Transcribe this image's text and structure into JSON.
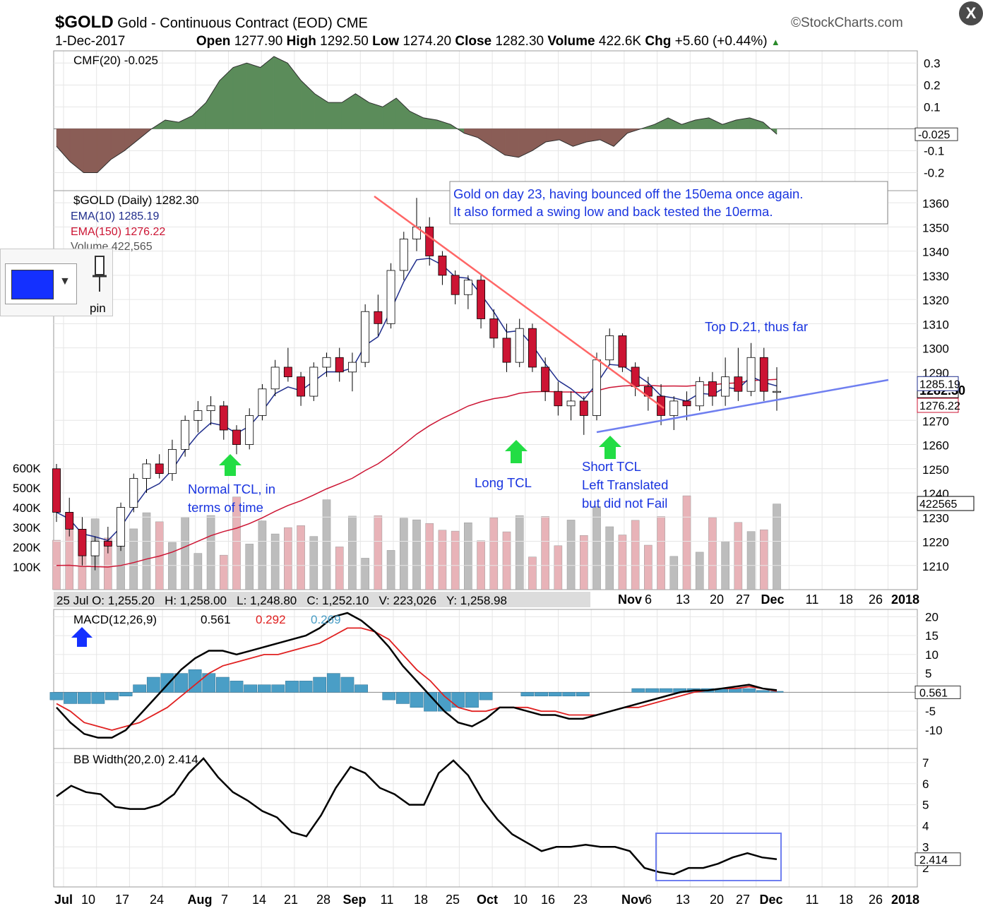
{
  "header": {
    "symbol": "$GOLD",
    "name": "Gold - Continuous Contract (EOD)",
    "exchange": "CME",
    "source": "©StockCharts.com",
    "date": "1-Dec-2017",
    "open_label": "Open",
    "open": "1277.90",
    "high_label": "High",
    "high": "1292.50",
    "low_label": "Low",
    "low": "1274.20",
    "close_label": "Close",
    "close": "1282.30",
    "volume_label": "Volume",
    "volume": "422.6K",
    "chg_label": "Chg",
    "chg": "+5.60 (+0.44%)"
  },
  "toolbar": {
    "close_label": "X",
    "pin_label": "pin",
    "swatch_color": "#1430ff"
  },
  "chart_data": [
    {
      "type": "area",
      "panel": "cmf",
      "legend": "CMF(20) -0.025",
      "ylim": [
        -0.25,
        0.33
      ],
      "yticks": [
        "0.3",
        "0.2",
        "0.1",
        "-0.1",
        "-0.2"
      ],
      "current_value": "-0.025",
      "values": [
        -0.08,
        -0.15,
        -0.2,
        -0.2,
        -0.14,
        -0.1,
        -0.05,
        0.0,
        0.04,
        0.03,
        0.06,
        0.12,
        0.22,
        0.28,
        0.3,
        0.28,
        0.33,
        0.3,
        0.22,
        0.16,
        0.12,
        0.12,
        0.16,
        0.12,
        0.1,
        0.14,
        0.08,
        0.05,
        0.04,
        0.02,
        -0.02,
        -0.04,
        -0.08,
        -0.12,
        -0.13,
        -0.1,
        -0.06,
        -0.05,
        -0.08,
        -0.06,
        -0.05,
        -0.08,
        -0.02,
        0.0,
        0.02,
        0.05,
        0.02,
        0.04,
        0.05,
        0.02,
        0.04,
        0.05,
        0.03,
        -0.025
      ],
      "colors": {
        "positive": "#5b8c5a",
        "negative": "#8a5d56"
      }
    },
    {
      "type": "candlestick",
      "panel": "price",
      "legend": [
        "$GOLD (Daily) 1282.30",
        "EMA(10) 1285.19",
        "EMA(150) 1276.22",
        "Volume 422,565"
      ],
      "ylim": [
        1200,
        1365
      ],
      "yticks": [
        "1360",
        "1350",
        "1340",
        "1330",
        "1320",
        "1310",
        "1300",
        "1290",
        "1270",
        "1260",
        "1250",
        "1240",
        "1230",
        "1220",
        "1210"
      ],
      "price_labels": [
        "1282.30",
        "1276.22",
        "1285.19"
      ],
      "ohlc": [
        [
          1250,
          1252,
          1228,
          1232
        ],
        [
          1232,
          1238,
          1222,
          1225
        ],
        [
          1225,
          1230,
          1210,
          1214
        ],
        [
          1214,
          1222,
          1208,
          1220
        ],
        [
          1220,
          1226,
          1215,
          1218
        ],
        [
          1218,
          1236,
          1216,
          1234
        ],
        [
          1234,
          1248,
          1232,
          1246
        ],
        [
          1246,
          1254,
          1240,
          1252
        ],
        [
          1252,
          1256,
          1246,
          1248
        ],
        [
          1248,
          1262,
          1245,
          1258
        ],
        [
          1258,
          1272,
          1255,
          1270
        ],
        [
          1270,
          1278,
          1265,
          1274
        ],
        [
          1274,
          1280,
          1268,
          1276
        ],
        [
          1276,
          1278,
          1262,
          1266
        ],
        [
          1266,
          1268,
          1256,
          1260
        ],
        [
          1260,
          1275,
          1258,
          1272
        ],
        [
          1272,
          1285,
          1270,
          1283
        ],
        [
          1283,
          1295,
          1280,
          1292
        ],
        [
          1292,
          1300,
          1286,
          1288
        ],
        [
          1288,
          1290,
          1276,
          1280
        ],
        [
          1280,
          1294,
          1278,
          1292
        ],
        [
          1292,
          1298,
          1288,
          1296
        ],
        [
          1296,
          1300,
          1286,
          1290
        ],
        [
          1290,
          1298,
          1282,
          1294
        ],
        [
          1294,
          1318,
          1292,
          1315
        ],
        [
          1315,
          1322,
          1305,
          1310
        ],
        [
          1310,
          1335,
          1308,
          1332
        ],
        [
          1332,
          1348,
          1328,
          1345
        ],
        [
          1345,
          1362,
          1340,
          1350
        ],
        [
          1350,
          1354,
          1334,
          1338
        ],
        [
          1338,
          1340,
          1326,
          1330
        ],
        [
          1330,
          1332,
          1318,
          1322
        ],
        [
          1322,
          1330,
          1316,
          1328
        ],
        [
          1328,
          1330,
          1308,
          1312
        ],
        [
          1312,
          1316,
          1300,
          1304
        ],
        [
          1304,
          1310,
          1290,
          1294
        ],
        [
          1294,
          1312,
          1292,
          1308
        ],
        [
          1308,
          1310,
          1290,
          1292
        ],
        [
          1292,
          1296,
          1278,
          1282
        ],
        [
          1282,
          1286,
          1272,
          1276
        ],
        [
          1276,
          1282,
          1270,
          1278
        ],
        [
          1278,
          1280,
          1264,
          1272
        ],
        [
          1272,
          1298,
          1270,
          1295
        ],
        [
          1295,
          1308,
          1293,
          1305
        ],
        [
          1305,
          1306,
          1290,
          1292
        ],
        [
          1292,
          1294,
          1280,
          1284
        ],
        [
          1284,
          1288,
          1274,
          1280
        ],
        [
          1280,
          1285,
          1268,
          1272
        ],
        [
          1272,
          1280,
          1266,
          1278
        ],
        [
          1278,
          1282,
          1270,
          1276
        ],
        [
          1276,
          1288,
          1274,
          1286
        ],
        [
          1286,
          1290,
          1276,
          1280
        ],
        [
          1280,
          1296,
          1276,
          1288
        ],
        [
          1288,
          1300,
          1278,
          1282
        ],
        [
          1282,
          1302,
          1280,
          1296
        ],
        [
          1296,
          1300,
          1278,
          1282
        ],
        [
          1282,
          1292,
          1274,
          1282
        ]
      ],
      "volume_ticks": [
        "600K",
        "500K",
        "400K",
        "300K",
        "200K",
        "100K"
      ],
      "volume_label": "422565"
    },
    {
      "type": "line",
      "panel": "macd",
      "legend": {
        "prefix": "MACD(12,26,9)",
        "macd": "0.561",
        "signal": "0.292",
        "hist": "0.269"
      },
      "ylim": [
        -13,
        21
      ],
      "yticks": [
        "20",
        "15",
        "10",
        "5",
        "-5",
        "-10"
      ],
      "current_value": "0.561",
      "macd": [
        -4,
        -8,
        -11,
        -12,
        -12,
        -10,
        -6,
        -2,
        2,
        6,
        9,
        11,
        11,
        10,
        11,
        12,
        13,
        14,
        15,
        17,
        20,
        21,
        19,
        16,
        12,
        7,
        3,
        -1,
        -5,
        -8,
        -9,
        -7,
        -4,
        -4,
        -5,
        -6,
        -6,
        -7,
        -7,
        -6,
        -5,
        -4,
        -3,
        -2,
        -1,
        0,
        0.5,
        0.5,
        1,
        1.5,
        2,
        1,
        0.561
      ],
      "signal": [
        -3,
        -5,
        -8,
        -9,
        -10,
        -9,
        -8,
        -6,
        -4,
        -1,
        2,
        5,
        7,
        8,
        9,
        10,
        10,
        11,
        12,
        13,
        15,
        17,
        17,
        16,
        14,
        10,
        6,
        3,
        -1,
        -4,
        -5,
        -5,
        -4,
        -4,
        -4,
        -5,
        -5,
        -6,
        -6,
        -6,
        -5,
        -4,
        -4,
        -3,
        -2,
        -1,
        0,
        0.5,
        1,
        1,
        1.5,
        1,
        0.292
      ],
      "histogram": [
        -2,
        -3,
        -3,
        -3,
        -2,
        -1,
        2,
        4,
        5,
        5,
        6,
        5,
        4,
        3,
        2,
        2,
        2,
        3,
        3,
        4,
        5,
        4,
        2,
        0,
        -2,
        -3,
        -4,
        -5,
        -5,
        -4,
        -4,
        -2,
        0,
        0,
        -1,
        -1,
        -1,
        -1,
        -1,
        0,
        0,
        0,
        1,
        1,
        1,
        1,
        1,
        1,
        1,
        1,
        1,
        0.5,
        0.269
      ],
      "colors": {
        "macd": "#000000",
        "signal": "#e02020",
        "hist": "#4a9ec6"
      }
    },
    {
      "type": "line",
      "panel": "bbwidth",
      "legend": "BB Width(20,2.0) 2.414",
      "ylim": [
        1.3,
        7.4
      ],
      "yticks": [
        "7",
        "6",
        "5",
        "4",
        "3",
        "2"
      ],
      "current_value": "2.414",
      "values": [
        5.4,
        5.9,
        5.6,
        5.5,
        4.9,
        4.8,
        4.8,
        5.0,
        5.5,
        6.5,
        7.2,
        6.3,
        5.6,
        5.2,
        4.7,
        4.4,
        3.7,
        3.5,
        4.5,
        5.8,
        6.8,
        6.5,
        5.8,
        5.5,
        5.0,
        5.0,
        6.5,
        7.1,
        6.4,
        5.2,
        4.3,
        3.6,
        3.2,
        2.8,
        3.0,
        3.0,
        3.1,
        3.0,
        3.0,
        2.8,
        2.0,
        1.8,
        1.7,
        2.0,
        2.0,
        2.2,
        2.5,
        2.7,
        2.5,
        2.414
      ],
      "color": "#000000"
    }
  ],
  "x_axis": {
    "labels_bottom": [
      "Jul",
      "10",
      "17",
      "24",
      "Aug",
      "7",
      "14",
      "21",
      "28",
      "Sep",
      "11",
      "18",
      "25",
      "Oct",
      "10",
      "16",
      "23",
      "Nov",
      "6",
      "13",
      "20",
      "27",
      "Dec",
      "11",
      "18",
      "26",
      "2018"
    ],
    "labels_mid": [
      "Nov",
      "6",
      "13",
      "20",
      "27",
      "Dec",
      "11",
      "18",
      "26",
      "2018"
    ],
    "info_bar": "25 Jul O: 1,255.20   H: 1,258.00   L: 1,248.80   C: 1,252.10   V: 223,026   Y: 1,258.98"
  },
  "annotations": {
    "note_line1": "Gold on day 23, having bounced off the 150ema once again.",
    "note_line2": "It also formed a swing low and back tested the 10erma.",
    "top_label": "Top D.21, thus far",
    "normal_tcl_1": "Normal TCL, in",
    "normal_tcl_2": "terms of time",
    "long_tcl": "Long TCL",
    "short_tcl_1": "Short TCL",
    "short_tcl_2": "Left Translated",
    "short_tcl_3": "but did not Fail"
  },
  "colors": {
    "bull_candle": "#ffffff",
    "bear_candle": "#cc1433",
    "ema10": "#1f2d8c",
    "ema150": "#cc1433",
    "trend_red": "#ff6666",
    "trend_blue": "#6f7ff0",
    "annotation_blue": "#1a35e0",
    "arrow_green": "#22dd44"
  }
}
